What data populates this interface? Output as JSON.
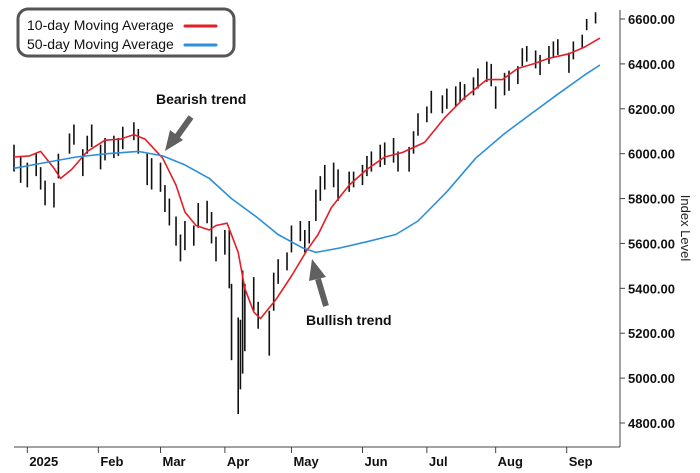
{
  "chart_data": {
    "type": "line",
    "title": "",
    "xlabel": "",
    "ylabel": "Index Level",
    "ylim": [
      4750,
      6680
    ],
    "yticks": [
      4800,
      5000,
      5200,
      5400,
      5600,
      5800,
      6000,
      6200,
      6400,
      6600
    ],
    "ytick_labels": [
      "4800.00",
      "5000.00",
      "5200.00",
      "5400.00",
      "5600.00",
      "5800.00",
      "6000.00",
      "6200.00",
      "6400.00",
      "6600.00"
    ],
    "xlim": [
      "2024-12-27",
      "2025-09-17"
    ],
    "xticks": [
      "2025-01-02",
      "2025-02-03",
      "2025-03-03",
      "2025-04-01",
      "2025-05-01",
      "2025-06-02",
      "2025-07-01",
      "2025-08-01",
      "2025-09-02"
    ],
    "xtick_labels": [
      "2025",
      "Feb",
      "Mar",
      "Apr",
      "May",
      "Jun",
      "Jul",
      "Aug",
      "Sep"
    ],
    "grid": false,
    "legend_position": "top-left",
    "colors": {
      "ma10": "#e41e26",
      "ma50": "#2b8fd9",
      "bars": "#111111"
    },
    "series": [
      {
        "name": "10-day Moving Average",
        "color": "#e41e26",
        "x": [
          "2024-12-27",
          "2025-01-03",
          "2025-01-08",
          "2025-01-14",
          "2025-01-17",
          "2025-01-22",
          "2025-01-29",
          "2025-02-06",
          "2025-02-13",
          "2025-02-19",
          "2025-02-24",
          "2025-03-04",
          "2025-03-10",
          "2025-03-14",
          "2025-03-19",
          "2025-03-25",
          "2025-03-28",
          "2025-04-02",
          "2025-04-07",
          "2025-04-10",
          "2025-04-14",
          "2025-04-17",
          "2025-04-24",
          "2025-05-01",
          "2025-05-08",
          "2025-05-13",
          "2025-05-19",
          "2025-05-27",
          "2025-06-04",
          "2025-06-12",
          "2025-06-20",
          "2025-06-30",
          "2025-07-09",
          "2025-07-18",
          "2025-07-28",
          "2025-08-04",
          "2025-08-11",
          "2025-08-18",
          "2025-08-25",
          "2025-09-03",
          "2025-09-10",
          "2025-09-17"
        ],
        "values": [
          5985,
          5990,
          6010,
          5935,
          5890,
          5930,
          6010,
          6060,
          6065,
          6085,
          6065,
          5980,
          5860,
          5740,
          5680,
          5660,
          5680,
          5690,
          5560,
          5400,
          5295,
          5265,
          5350,
          5455,
          5570,
          5640,
          5760,
          5860,
          5930,
          5985,
          6005,
          6050,
          6160,
          6250,
          6330,
          6330,
          6380,
          6400,
          6425,
          6445,
          6475,
          6515
        ]
      },
      {
        "name": "50-day Moving Average",
        "color": "#2b8fd9",
        "x": [
          "2024-12-27",
          "2025-01-10",
          "2025-01-24",
          "2025-02-07",
          "2025-02-21",
          "2025-03-04",
          "2025-03-14",
          "2025-03-25",
          "2025-04-04",
          "2025-04-15",
          "2025-04-25",
          "2025-05-06",
          "2025-05-12",
          "2025-05-23",
          "2025-06-05",
          "2025-06-17",
          "2025-06-27",
          "2025-07-10",
          "2025-07-23",
          "2025-08-05",
          "2025-08-18",
          "2025-08-29",
          "2025-09-10",
          "2025-09-17"
        ],
        "values": [
          5935,
          5960,
          5985,
          6000,
          6010,
          5990,
          5950,
          5890,
          5800,
          5720,
          5640,
          5580,
          5560,
          5580,
          5610,
          5640,
          5700,
          5830,
          5980,
          6090,
          6185,
          6265,
          6350,
          6395
        ]
      }
    ],
    "price_bars": {
      "x": [
        "2024-12-27",
        "2024-12-30",
        "2025-01-02",
        "2025-01-06",
        "2025-01-08",
        "2025-01-10",
        "2025-01-14",
        "2025-01-16",
        "2025-01-21",
        "2025-01-23",
        "2025-01-27",
        "2025-01-29",
        "2025-01-31",
        "2025-02-04",
        "2025-02-06",
        "2025-02-10",
        "2025-02-12",
        "2025-02-14",
        "2025-02-19",
        "2025-02-21",
        "2025-02-25",
        "2025-02-27",
        "2025-03-03",
        "2025-03-05",
        "2025-03-07",
        "2025-03-10",
        "2025-03-12",
        "2025-03-14",
        "2025-03-18",
        "2025-03-20",
        "2025-03-24",
        "2025-03-26",
        "2025-03-28",
        "2025-04-01",
        "2025-04-03",
        "2025-04-04",
        "2025-04-07",
        "2025-04-08",
        "2025-04-09",
        "2025-04-10",
        "2025-04-14",
        "2025-04-16",
        "2025-04-21",
        "2025-04-23",
        "2025-04-25",
        "2025-04-29",
        "2025-05-01",
        "2025-05-05",
        "2025-05-07",
        "2025-05-09",
        "2025-05-12",
        "2025-05-14",
        "2025-05-16",
        "2025-05-20",
        "2025-05-22",
        "2025-05-27",
        "2025-05-29",
        "2025-06-02",
        "2025-06-04",
        "2025-06-06",
        "2025-06-10",
        "2025-06-12",
        "2025-06-16",
        "2025-06-18",
        "2025-06-23",
        "2025-06-25",
        "2025-06-27",
        "2025-07-01",
        "2025-07-03",
        "2025-07-08",
        "2025-07-10",
        "2025-07-14",
        "2025-07-16",
        "2025-07-18",
        "2025-07-22",
        "2025-07-24",
        "2025-07-28",
        "2025-07-30",
        "2025-08-01",
        "2025-08-05",
        "2025-08-07",
        "2025-08-11",
        "2025-08-13",
        "2025-08-15",
        "2025-08-19",
        "2025-08-21",
        "2025-08-25",
        "2025-08-27",
        "2025-08-29",
        "2025-09-03",
        "2025-09-05",
        "2025-09-09",
        "2025-09-11",
        "2025-09-15"
      ],
      "high": [
        6040,
        5990,
        5960,
        6000,
        5940,
        5880,
        5870,
        6000,
        6090,
        6130,
        6020,
        6080,
        6130,
        6040,
        6070,
        6080,
        6070,
        6120,
        6140,
        6110,
        6000,
        5980,
        5960,
        5860,
        5800,
        5720,
        5640,
        5700,
        5680,
        5780,
        5790,
        5740,
        5630,
        5660,
        5660,
        5420,
        5270,
        5260,
        5480,
        5420,
        5450,
        5340,
        5300,
        5470,
        5530,
        5560,
        5680,
        5700,
        5660,
        5700,
        5840,
        5900,
        5950,
        5960,
        5930,
        5920,
        5920,
        5950,
        5990,
        6010,
        6040,
        6050,
        6070,
        6010,
        6030,
        6100,
        6180,
        6210,
        6280,
        6260,
        6290,
        6300,
        6320,
        6310,
        6340,
        6380,
        6410,
        6400,
        6300,
        6360,
        6370,
        6390,
        6470,
        6480,
        6460,
        6440,
        6480,
        6500,
        6510,
        6450,
        6500,
        6530,
        6600,
        6630
      ],
      "low": [
        5920,
        5870,
        5850,
        5900,
        5840,
        5770,
        5760,
        5890,
        6000,
        6040,
        5900,
        6000,
        6030,
        5930,
        5970,
        5980,
        5990,
        6020,
        6060,
        6000,
        5860,
        5840,
        5830,
        5740,
        5680,
        5590,
        5520,
        5570,
        5590,
        5670,
        5690,
        5600,
        5520,
        5550,
        5400,
        5080,
        4840,
        4950,
        5020,
        5120,
        5300,
        5220,
        5100,
        5300,
        5420,
        5480,
        5560,
        5610,
        5560,
        5600,
        5700,
        5790,
        5840,
        5850,
        5790,
        5830,
        5850,
        5860,
        5900,
        5920,
        5940,
        5950,
        5960,
        5920,
        5920,
        6000,
        6080,
        6140,
        6180,
        6180,
        6200,
        6210,
        6230,
        6240,
        6260,
        6290,
        6320,
        6300,
        6200,
        6260,
        6280,
        6310,
        6390,
        6410,
        6380,
        6350,
        6400,
        6430,
        6440,
        6360,
        6420,
        6470,
        6550,
        6580
      ]
    },
    "annotations": [
      {
        "label": "Bearish trend",
        "x": "2025-02-27",
        "y": 6010
      },
      {
        "label": "Bullish trend",
        "x": "2025-05-09",
        "y": 5560
      }
    ]
  }
}
